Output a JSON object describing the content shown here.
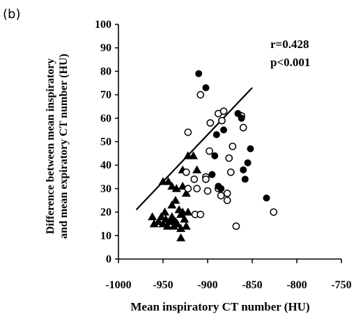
{
  "panel_label": "(b)",
  "chart_data": {
    "type": "scatter",
    "title": "",
    "xlabel": "Mean inspiratory CT number (HU)",
    "ylabel_line1": "Difference between mean inspiratory",
    "ylabel_line2": "and mean expiratory CT number (HU)",
    "xlim": [
      -1000,
      -750
    ],
    "ylim": [
      0,
      100
    ],
    "xticks": [
      -1000,
      -950,
      -900,
      -850,
      -800,
      -750
    ],
    "yticks": [
      0,
      10,
      20,
      30,
      40,
      50,
      60,
      70,
      80,
      90,
      100
    ],
    "grid": false,
    "legend": "none",
    "annotations": [
      "r=0.428",
      "p<0.001"
    ],
    "regression_line": {
      "x": [
        -980,
        -850
      ],
      "y": [
        21,
        73
      ]
    },
    "series": [
      {
        "marker": "filled-triangle",
        "color": "#000000",
        "points": [
          [
            -962,
            18
          ],
          [
            -960,
            15
          ],
          [
            -955,
            16
          ],
          [
            -952,
            18
          ],
          [
            -950,
            15
          ],
          [
            -948,
            20
          ],
          [
            -947,
            17
          ],
          [
            -945,
            14
          ],
          [
            -943,
            16
          ],
          [
            -941,
            17
          ],
          [
            -940,
            18
          ],
          [
            -938,
            14
          ],
          [
            -936,
            16
          ],
          [
            -934,
            15
          ],
          [
            -932,
            21
          ],
          [
            -930,
            9
          ],
          [
            -930,
            13
          ],
          [
            -928,
            20
          ],
          [
            -926,
            17
          ],
          [
            -924,
            14
          ],
          [
            -922,
            20
          ],
          [
            -940,
            23
          ],
          [
            -936,
            25
          ],
          [
            -930,
            19
          ],
          [
            -928,
            31
          ],
          [
            -924,
            28
          ],
          [
            -950,
            33
          ],
          [
            -944,
            33
          ],
          [
            -940,
            31
          ],
          [
            -935,
            30
          ],
          [
            -922,
            44
          ],
          [
            -916,
            44
          ],
          [
            -912,
            38
          ],
          [
            -928,
            38
          ]
        ]
      },
      {
        "marker": "open-circle",
        "color": "#000000",
        "points": [
          [
            -922,
            54
          ],
          [
            -924,
            37
          ],
          [
            -922,
            30
          ],
          [
            -915,
            34
          ],
          [
            -912,
            30
          ],
          [
            -914,
            19
          ],
          [
            -908,
            19
          ],
          [
            -902,
            35
          ],
          [
            -900,
            29
          ],
          [
            -897,
            58
          ],
          [
            -888,
            62
          ],
          [
            -884,
            59
          ],
          [
            -882,
            63
          ],
          [
            -878,
            28
          ],
          [
            -876,
            43
          ],
          [
            -874,
            37
          ],
          [
            -872,
            48
          ],
          [
            -868,
            14
          ],
          [
            -860,
            56
          ],
          [
            -908,
            70
          ],
          [
            -902,
            34
          ],
          [
            -888,
            30
          ],
          [
            -885,
            27
          ],
          [
            -826,
            20
          ],
          [
            -862,
            61
          ],
          [
            -878,
            25
          ],
          [
            -898,
            46
          ]
        ]
      },
      {
        "marker": "filled-circle",
        "color": "#000000",
        "points": [
          [
            -910,
            79
          ],
          [
            -902,
            73
          ],
          [
            -895,
            36
          ],
          [
            -892,
            44
          ],
          [
            -890,
            53
          ],
          [
            -888,
            31
          ],
          [
            -885,
            30
          ],
          [
            -882,
            55
          ],
          [
            -866,
            62
          ],
          [
            -862,
            60
          ],
          [
            -860,
            38
          ],
          [
            -858,
            34
          ],
          [
            -852,
            47
          ],
          [
            -855,
            41
          ],
          [
            -834,
            26
          ]
        ]
      }
    ]
  }
}
